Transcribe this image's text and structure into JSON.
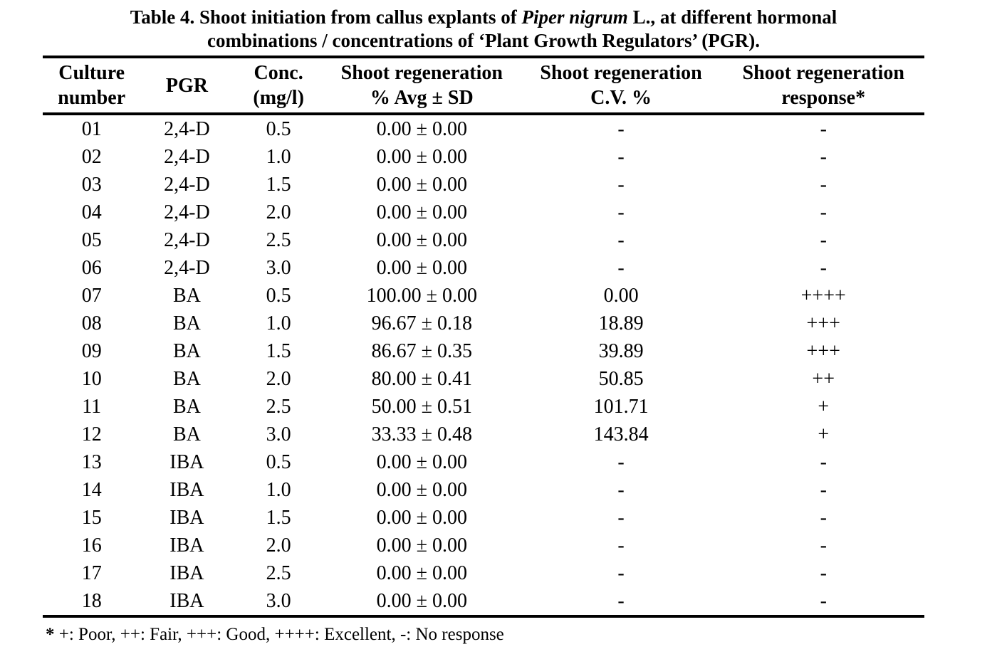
{
  "page": {
    "title": {
      "line1_prefix": "Table 4. Shoot initiation from callus explants of ",
      "line1_italic": "Piper nigrum",
      "line1_suffix": " L., at different hormonal",
      "line2": "combinations / concentrations of ‘Plant Growth Regulators’ (PGR)."
    },
    "table": {
      "headers": [
        "Culture\nnumber",
        "PGR",
        "Conc.\n(mg/l)",
        "Shoot regeneration\n% Avg ± SD",
        "Shoot regeneration\nC.V. %",
        "Shoot regeneration\nresponse*"
      ],
      "rows": [
        [
          "01",
          "2,4-D",
          "0.5",
          "0.00 ± 0.00",
          "-",
          "-"
        ],
        [
          "02",
          "2,4-D",
          "1.0",
          "0.00 ± 0.00",
          "-",
          "-"
        ],
        [
          "03",
          "2,4-D",
          "1.5",
          "0.00 ± 0.00",
          "-",
          "-"
        ],
        [
          "04",
          "2,4-D",
          "2.0",
          "0.00 ± 0.00",
          "-",
          "-"
        ],
        [
          "05",
          "2,4-D",
          "2.5",
          "0.00 ± 0.00",
          "-",
          "-"
        ],
        [
          "06",
          "2,4-D",
          "3.0",
          "0.00 ± 0.00",
          "-",
          "-"
        ],
        [
          "07",
          "BA",
          "0.5",
          "100.00 ± 0.00",
          "0.00",
          "++++"
        ],
        [
          "08",
          "BA",
          "1.0",
          "96.67 ± 0.18",
          "18.89",
          "+++"
        ],
        [
          "09",
          "BA",
          "1.5",
          "86.67 ± 0.35",
          "39.89",
          "+++"
        ],
        [
          "10",
          "BA",
          "2.0",
          "80.00 ± 0.41",
          "50.85",
          "++"
        ],
        [
          "11",
          "BA",
          "2.5",
          "50.00 ± 0.51",
          "101.71",
          "+"
        ],
        [
          "12",
          "BA",
          "3.0",
          "33.33 ± 0.48",
          "143.84",
          "+"
        ],
        [
          "13",
          "IBA",
          "0.5",
          "0.00 ± 0.00",
          "-",
          "-"
        ],
        [
          "14",
          "IBA",
          "1.0",
          "0.00 ± 0.00",
          "-",
          "-"
        ],
        [
          "15",
          "IBA",
          "1.5",
          "0.00 ± 0.00",
          "-",
          "-"
        ],
        [
          "16",
          "IBA",
          "2.0",
          "0.00 ± 0.00",
          "-",
          "-"
        ],
        [
          "17",
          "IBA",
          "2.5",
          "0.00 ± 0.00",
          "-",
          "-"
        ],
        [
          "18",
          "IBA",
          "3.0",
          "0.00 ± 0.00",
          "-",
          "-"
        ]
      ]
    },
    "footnote": {
      "marker": "*",
      "text": " +: Poor, ++: Fair, +++: Good, ++++: Excellent, -: No response"
    }
  }
}
